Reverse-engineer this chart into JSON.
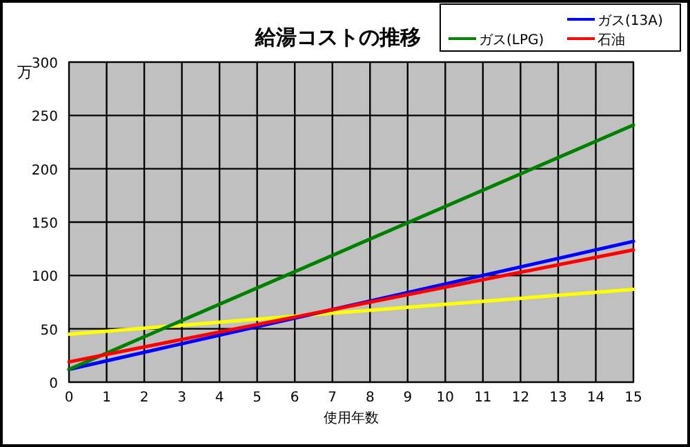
{
  "chart_data": {
    "type": "line",
    "title": "給湯コストの推移",
    "xlabel": "使用年数",
    "ylabel": "万",
    "x": [
      0,
      15
    ],
    "series": [
      {
        "color": "#ffff00",
        "values": [
          45,
          87
        ]
      },
      {
        "name": "ガス(13A)",
        "color": "#0000ff",
        "values": [
          12,
          132
        ]
      },
      {
        "name": "ガス(LPG)",
        "color": "#008000",
        "values": [
          12,
          241
        ]
      },
      {
        "name": "石油",
        "color": "#ff0000",
        "values": [
          19,
          124
        ]
      }
    ],
    "xlim": [
      0,
      15
    ],
    "xticks": [
      0,
      1,
      2,
      3,
      4,
      5,
      6,
      7,
      8,
      9,
      10,
      11,
      12,
      13,
      14,
      15
    ],
    "ylim": [
      0,
      300
    ],
    "yticks": [
      0,
      50,
      100,
      150,
      200,
      250,
      300
    ],
    "grid": true,
    "legend": "top right",
    "marker": "none",
    "line_style": "solid"
  }
}
